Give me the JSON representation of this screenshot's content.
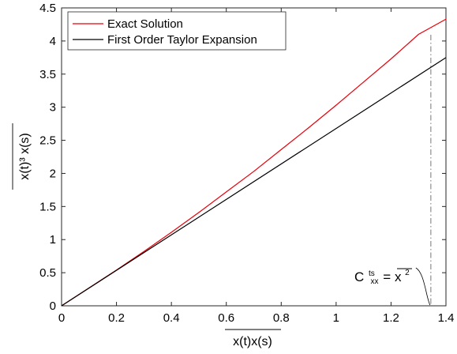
{
  "chart_data": {
    "type": "line",
    "xlim": [
      0,
      1.4
    ],
    "ylim": [
      0,
      4.5
    ],
    "xticks": [
      0,
      0.2,
      0.4,
      0.6,
      0.8,
      1,
      1.2,
      1.4
    ],
    "yticks": [
      0,
      0.5,
      1,
      1.5,
      2,
      2.5,
      3,
      3.5,
      4,
      4.5
    ],
    "xtick_labels": [
      "0",
      "0.2",
      "0.4",
      "0.6",
      "0.8",
      "1",
      "1.2",
      "1.4"
    ],
    "ytick_labels": [
      "0",
      "0.5",
      "1",
      "1.5",
      "2",
      "2.5",
      "3",
      "3.5",
      "4",
      "4.5"
    ],
    "xlabel": "x(t)x(s)",
    "ylabel": "x(t)³ x(s)",
    "grid": false,
    "legend_position": "top-left",
    "series": [
      {
        "name": "Exact Solution",
        "color": "#e8000b",
        "x": [
          0,
          0.1,
          0.2,
          0.3,
          0.4,
          0.5,
          0.6,
          0.7,
          0.8,
          0.9,
          1.0,
          1.1,
          1.2,
          1.3,
          1.4
        ],
        "y": [
          0,
          0.27,
          0.54,
          0.82,
          1.11,
          1.41,
          1.72,
          2.03,
          2.36,
          2.69,
          3.03,
          3.38,
          3.73,
          4.1,
          4.33
        ]
      },
      {
        "name": "First Order Taylor Expansion",
        "color": "#000000",
        "x": [
          0,
          1.4
        ],
        "y": [
          0,
          3.75
        ]
      }
    ],
    "annotations": [
      {
        "label_main": "C",
        "label_sup": "ts",
        "label_sub": "xx",
        "label_eq": "=",
        "label_rhs": "x",
        "label_rhs_sup": "2",
        "x": 1.345,
        "style": "dash-dot vertical line"
      }
    ]
  }
}
